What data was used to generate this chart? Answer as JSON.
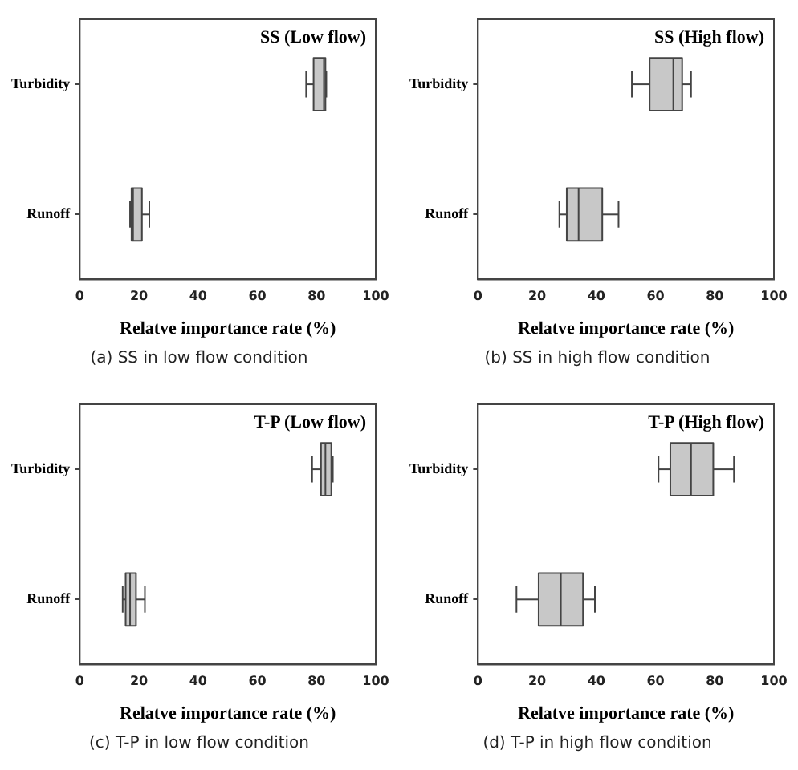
{
  "chart_data": [
    {
      "type": "box",
      "title": "SS (Low flow)",
      "orientation": "horizontal",
      "categories": [
        "Turbidity",
        "Runoff"
      ],
      "color": "#c8c8c8",
      "xlabel": "Relatve importance rate (%)",
      "xlim": [
        0,
        100
      ],
      "xticks": [
        0,
        20,
        40,
        60,
        80,
        100
      ],
      "grid": false,
      "annotations": [
        "(a) SS in low flow condition"
      ],
      "boxes": [
        {
          "low": 76.5,
          "q1": 79,
          "median": 82.5,
          "q3": 83,
          "high": 83.3
        },
        {
          "low": 17,
          "q1": 17.5,
          "median": 18,
          "q3": 21,
          "high": 23.5
        }
      ]
    },
    {
      "type": "box",
      "title": "SS (High flow)",
      "orientation": "horizontal",
      "categories": [
        "Turbidity",
        "Runoff"
      ],
      "color": "#c8c8c8",
      "xlabel": "Relatve importance rate (%)",
      "xlim": [
        0,
        100
      ],
      "xticks": [
        0,
        20,
        40,
        60,
        80,
        100
      ],
      "grid": false,
      "annotations": [
        "(b) SS in high flow condition"
      ],
      "boxes": [
        {
          "low": 52,
          "q1": 58,
          "median": 66,
          "q3": 69,
          "high": 72
        },
        {
          "low": 27.5,
          "q1": 30,
          "median": 34,
          "q3": 42,
          "high": 47.5
        }
      ]
    },
    {
      "type": "box",
      "title": "T-P (Low flow)",
      "orientation": "horizontal",
      "categories": [
        "Turbidity",
        "Runoff"
      ],
      "color": "#c8c8c8",
      "xlabel": "Relatve importance rate (%)",
      "xlim": [
        0,
        100
      ],
      "xticks": [
        0,
        20,
        40,
        60,
        80,
        100
      ],
      "grid": false,
      "annotations": [
        "(c) T-P in low flow condition"
      ],
      "boxes": [
        {
          "low": 78.5,
          "q1": 81.5,
          "median": 83,
          "q3": 85,
          "high": 85.5
        },
        {
          "low": 14.5,
          "q1": 15.5,
          "median": 17,
          "q3": 19,
          "high": 22
        }
      ]
    },
    {
      "type": "box",
      "title": "T-P (High flow)",
      "orientation": "horizontal",
      "categories": [
        "Turbidity",
        "Runoff"
      ],
      "color": "#c8c8c8",
      "xlabel": "Relatve importance rate (%)",
      "xlim": [
        0,
        100
      ],
      "xticks": [
        0,
        20,
        40,
        60,
        80,
        100
      ],
      "grid": false,
      "annotations": [
        "(d) T-P in high flow condition"
      ],
      "boxes": [
        {
          "low": 61,
          "q1": 65,
          "median": 72,
          "q3": 79.5,
          "high": 86.5
        },
        {
          "low": 13,
          "q1": 20.5,
          "median": 28,
          "q3": 35.5,
          "high": 39.5
        }
      ]
    }
  ]
}
